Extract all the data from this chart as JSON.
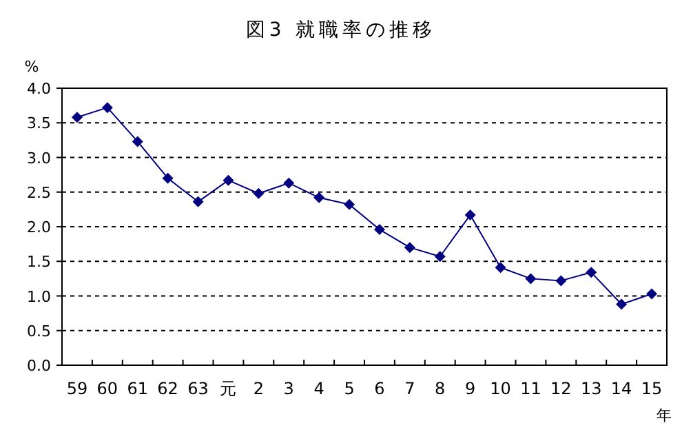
{
  "chart_data": {
    "type": "line",
    "title": "図3 就職率の推移",
    "ylabel": "%",
    "xlabel": "年",
    "categories": [
      "59",
      "60",
      "61",
      "62",
      "63",
      "元",
      "2",
      "3",
      "4",
      "5",
      "6",
      "7",
      "8",
      "9",
      "10",
      "11",
      "12",
      "13",
      "14",
      "15"
    ],
    "series": [
      {
        "color": "#000080",
        "values": [
          3.58,
          3.72,
          3.23,
          2.7,
          2.36,
          2.67,
          2.48,
          2.63,
          2.42,
          2.32,
          1.96,
          1.7,
          1.57,
          2.17,
          1.41,
          1.25,
          1.22,
          1.34,
          0.88,
          1.03
        ]
      }
    ],
    "ylim": [
      0,
      4
    ],
    "yticks": [
      {
        "value": 0,
        "label": "0.0"
      },
      {
        "value": 0.5,
        "label": "0.5"
      },
      {
        "value": 1,
        "label": "1.0"
      },
      {
        "value": 1.5,
        "label": "1.5"
      },
      {
        "value": 2,
        "label": "2.0"
      },
      {
        "value": 2.5,
        "label": "2.5"
      },
      {
        "value": 3,
        "label": "3.0"
      },
      {
        "value": 3.5,
        "label": "3.5"
      },
      {
        "value": 4,
        "label": "4.0"
      }
    ],
    "grid": "y",
    "marker": "diamond",
    "line_style": "solid"
  }
}
